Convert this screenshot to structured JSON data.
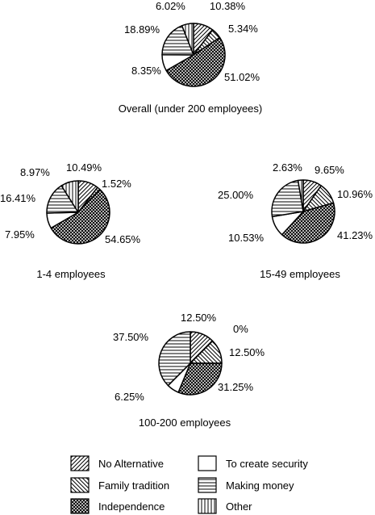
{
  "legend": {
    "items": [
      {
        "label": "No Alternative",
        "pattern": "diag-ne"
      },
      {
        "label": "To create security",
        "pattern": "blank"
      },
      {
        "label": "Family tradition",
        "pattern": "diag-nw"
      },
      {
        "label": "Making money",
        "pattern": "horizontal"
      },
      {
        "label": "Independence",
        "pattern": "crosshatch"
      },
      {
        "label": "Other",
        "pattern": "vertical"
      }
    ]
  },
  "chart_data": [
    {
      "type": "pie",
      "title": "Overall (under 200 employees)",
      "slices": [
        {
          "category": "No Alternative",
          "value": 10.38,
          "label": "10.38%"
        },
        {
          "category": "Family tradition",
          "value": 5.34,
          "label": "5.34%"
        },
        {
          "category": "Independence",
          "value": 51.02,
          "label": "51.02%"
        },
        {
          "category": "To create security",
          "value": 8.35,
          "label": "8.35%"
        },
        {
          "category": "Making money",
          "value": 18.89,
          "label": "18.89%"
        },
        {
          "category": "Other",
          "value": 6.02,
          "label": "6.02%"
        }
      ]
    },
    {
      "type": "pie",
      "title": "1-4 employees",
      "slices": [
        {
          "category": "No Alternative",
          "value": 10.49,
          "label": "10.49%"
        },
        {
          "category": "Family tradition",
          "value": 1.52,
          "label": "1.52%"
        },
        {
          "category": "Independence",
          "value": 54.65,
          "label": "54.65%"
        },
        {
          "category": "To create security",
          "value": 7.95,
          "label": "7.95%"
        },
        {
          "category": "Making money",
          "value": 16.41,
          "label": "16.41%"
        },
        {
          "category": "Other",
          "value": 8.97,
          "label": "8.97%"
        }
      ]
    },
    {
      "type": "pie",
      "title": "15-49 employees",
      "slices": [
        {
          "category": "No Alternative",
          "value": 9.65,
          "label": "9.65%"
        },
        {
          "category": "Family tradition",
          "value": 10.96,
          "label": "10.96%"
        },
        {
          "category": "Independence",
          "value": 41.23,
          "label": "41.23%"
        },
        {
          "category": "To create security",
          "value": 10.53,
          "label": "10.53%"
        },
        {
          "category": "Making money",
          "value": 25.0,
          "label": "25.00%"
        },
        {
          "category": "Other",
          "value": 2.63,
          "label": "2.63%"
        }
      ]
    },
    {
      "type": "pie",
      "title": "100-200 employees",
      "slices": [
        {
          "category": "No Alternative",
          "value": 12.5,
          "label": "12.50%"
        },
        {
          "category": "Family tradition",
          "value": 12.5,
          "label": "12.50%"
        },
        {
          "category": "Independence",
          "value": 31.25,
          "label": "31.25%"
        },
        {
          "category": "To create security",
          "value": 6.25,
          "label": "6.25%"
        },
        {
          "category": "Making money",
          "value": 37.5,
          "label": "37.50%"
        },
        {
          "category": "Other",
          "value": 0,
          "label": "0%"
        }
      ]
    }
  ]
}
